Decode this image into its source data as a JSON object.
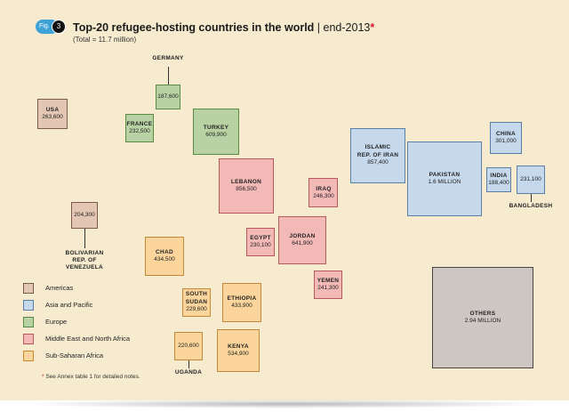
{
  "figure": {
    "badge_text": "Fig.",
    "badge_number": "3"
  },
  "title": {
    "main": "Top-20 refugee-hosting countries in the world",
    "separator": " | ",
    "sub": "end-2013",
    "asterisk": "*"
  },
  "subtitle": "(Total = 11.7 million)",
  "colors": {
    "Americas": {
      "fill": "#e3c6b3",
      "stroke": "#7a5a4a"
    },
    "Asia and Pacific": {
      "fill": "#c5d8ec",
      "stroke": "#5b7ea6"
    },
    "Europe": {
      "fill": "#b9d2a3",
      "stroke": "#5a8a44"
    },
    "Middle East and North Africa": {
      "fill": "#f2b9b6",
      "stroke": "#b8595a"
    },
    "Sub-Saharan Africa": {
      "fill": "#fbd59b",
      "stroke": "#c48a3a"
    },
    "Others": {
      "fill": "#cdc6c3",
      "stroke": "#4a4443"
    }
  },
  "legend": [
    "Americas",
    "Asia and Pacific",
    "Europe",
    "Middle East and North Africa",
    "Sub-Saharan Africa"
  ],
  "note": {
    "asterisk": "*",
    "text": " See Annex table 1 for detailed notes."
  },
  "chart_data": {
    "type": "proportional-area",
    "title": "Top-20 refugee-hosting countries in the world | end-2013",
    "subtitle": "(Total = 11.7 million)",
    "items": [
      {
        "name": "USA",
        "value": 263600,
        "label": "263,600",
        "region": "Americas"
      },
      {
        "name": "BOLIVARIAN REP. OF VENEZUELA",
        "value": 204300,
        "label": "204,300",
        "region": "Americas"
      },
      {
        "name": "GERMANY",
        "value": 187600,
        "label": "187,600",
        "region": "Europe"
      },
      {
        "name": "FRANCE",
        "value": 232500,
        "label": "232,500",
        "region": "Europe"
      },
      {
        "name": "TURKEY",
        "value": 609900,
        "label": "609,900",
        "region": "Europe"
      },
      {
        "name": "LEBANON",
        "value": 856500,
        "label": "856,500",
        "region": "Middle East and North Africa"
      },
      {
        "name": "IRAQ",
        "value": 246300,
        "label": "246,300",
        "region": "Middle East and North Africa"
      },
      {
        "name": "EGYPT",
        "value": 230100,
        "label": "230,100",
        "region": "Middle East and North Africa"
      },
      {
        "name": "JORDAN",
        "value": 641900,
        "label": "641,900",
        "region": "Middle East and North Africa"
      },
      {
        "name": "YEMEN",
        "value": 241300,
        "label": "241,300",
        "region": "Middle East and North Africa"
      },
      {
        "name": "ISLAMIC REP. OF IRAN",
        "value": 857400,
        "label": "857,400",
        "region": "Asia and Pacific"
      },
      {
        "name": "PAKISTAN",
        "value": 1600000,
        "label": "1.6 MILLION",
        "region": "Asia and Pacific"
      },
      {
        "name": "CHINA",
        "value": 301000,
        "label": "301,000",
        "region": "Asia and Pacific"
      },
      {
        "name": "INDIA",
        "value": 188400,
        "label": "188,400",
        "region": "Asia and Pacific"
      },
      {
        "name": "BANGLADESH",
        "value": 231100,
        "label": "231,100",
        "region": "Asia and Pacific"
      },
      {
        "name": "CHAD",
        "value": 434500,
        "label": "434,500",
        "region": "Sub-Saharan Africa"
      },
      {
        "name": "SOUTH SUDAN",
        "value": 229600,
        "label": "229,600",
        "region": "Sub-Saharan Africa"
      },
      {
        "name": "ETHIOPIA",
        "value": 433900,
        "label": "433,900",
        "region": "Sub-Saharan Africa"
      },
      {
        "name": "KENYA",
        "value": 534900,
        "label": "534,900",
        "region": "Sub-Saharan Africa"
      },
      {
        "name": "UGANDA",
        "value": 220600,
        "label": "220,600",
        "region": "Sub-Saharan Africa"
      },
      {
        "name": "OTHERS",
        "value": 2940000,
        "label": "2.94 MILLION",
        "region": "Others"
      }
    ]
  }
}
